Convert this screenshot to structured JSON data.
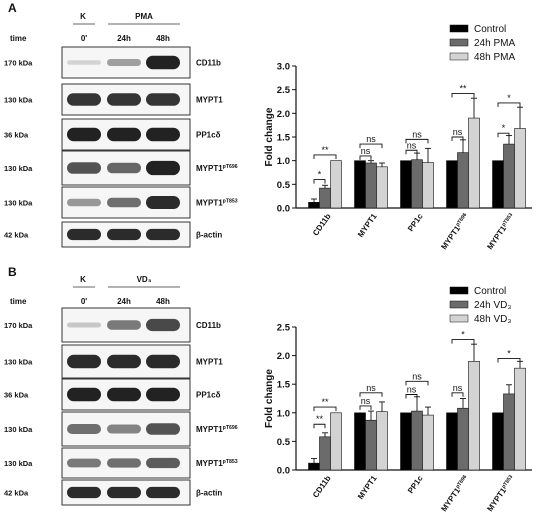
{
  "panels": [
    {
      "letter": "A",
      "group_labels": [
        "K",
        "PMA"
      ],
      "time_label": "time",
      "time_points": [
        "0'",
        "24h",
        "48h"
      ],
      "blots": [
        {
          "mw": "170 kDa",
          "protein": "CD11b",
          "sup": "",
          "bands": [
            0.04,
            0.3,
            0.95
          ]
        },
        {
          "mw": "130 kDa",
          "protein": "MYPT1",
          "sup": "",
          "bands": [
            0.85,
            0.85,
            0.85
          ]
        },
        {
          "mw": "36 kDa",
          "protein": "PP1cδ",
          "sup": "",
          "bands": [
            0.95,
            0.95,
            0.95
          ]
        },
        {
          "mw": "130 kDa",
          "protein": "MYPT1",
          "sup": "pT696",
          "bands": [
            0.7,
            0.6,
            0.95
          ]
        },
        {
          "mw": "130 kDa",
          "protein": "MYPT1",
          "sup": "pT853",
          "bands": [
            0.35,
            0.55,
            0.9
          ]
        },
        {
          "mw": "42 kDa",
          "protein": "β-actin",
          "sup": "",
          "bands": [
            0.9,
            0.9,
            0.9
          ]
        }
      ]
    },
    {
      "letter": "B",
      "group_labels": [
        "K",
        "VD₃"
      ],
      "time_label": "time",
      "time_points": [
        "0'",
        "24h",
        "48h"
      ],
      "blots": [
        {
          "mw": "170 kDa",
          "protein": "CD11b",
          "sup": "",
          "bands": [
            0.1,
            0.5,
            0.75
          ]
        },
        {
          "mw": "130 kDa",
          "protein": "MYPT1",
          "sup": "",
          "bands": [
            0.9,
            0.9,
            0.9
          ]
        },
        {
          "mw": "36 kDa",
          "protein": "PP1cδ",
          "sup": "",
          "bands": [
            0.95,
            0.95,
            0.95
          ]
        },
        {
          "mw": "130 kDa",
          "protein": "MYPT1",
          "sup": "pT696",
          "bands": [
            0.55,
            0.45,
            0.7
          ]
        },
        {
          "mw": "130 kDa",
          "protein": "MYPT1",
          "sup": "pT853",
          "bands": [
            0.5,
            0.55,
            0.65
          ]
        },
        {
          "mw": "42 kDa",
          "protein": "β-actin",
          "sup": "",
          "bands": [
            0.9,
            0.9,
            0.9
          ]
        }
      ]
    }
  ],
  "chart_data": [
    {
      "type": "bar",
      "ylabel": "Fold change",
      "ylim": [
        0,
        3.0
      ],
      "yticks": [
        "0.0",
        "0.5",
        "1.0",
        "1.5",
        "2.0",
        "2.5",
        "3.0"
      ],
      "categories": [
        {
          "label": "CD11b",
          "sup": ""
        },
        {
          "label": "MYPT1",
          "sup": ""
        },
        {
          "label": "PP1c",
          "sup": ""
        },
        {
          "label": "MYPT1",
          "sup": "pT696"
        },
        {
          "label": "MYPT1",
          "sup": "pT853"
        }
      ],
      "legend_position": "top-right",
      "series": [
        {
          "name": "Control",
          "color": "#000000",
          "values": [
            0.12,
            1.0,
            1.0,
            1.0,
            1.0
          ],
          "errors": [
            0.07,
            0.0,
            0.0,
            0.0,
            0.0
          ]
        },
        {
          "name": "24h PMA",
          "color": "#6b6b6b",
          "values": [
            0.42,
            0.95,
            1.02,
            1.17,
            1.35
          ],
          "errors": [
            0.06,
            0.05,
            0.14,
            0.27,
            0.18
          ]
        },
        {
          "name": "48h PMA",
          "color": "#d3d3d3",
          "values": [
            1.0,
            0.87,
            0.96,
            1.9,
            1.68
          ],
          "errors": [
            0.0,
            0.08,
            0.3,
            0.42,
            0.45
          ]
        }
      ],
      "significance": [
        {
          "cat": 0,
          "from": 0,
          "to": 1,
          "label": "*",
          "y": 0.6
        },
        {
          "cat": 0,
          "from": 0,
          "to": 2,
          "label": "**",
          "y": 1.12
        },
        {
          "cat": 1,
          "from": 0,
          "to": 1,
          "label": "ns",
          "y": 1.1
        },
        {
          "cat": 1,
          "from": 0,
          "to": 2,
          "label": "ns",
          "y": 1.35
        },
        {
          "cat": 2,
          "from": 0,
          "to": 1,
          "label": "ns",
          "y": 1.22
        },
        {
          "cat": 2,
          "from": 0,
          "to": 2,
          "label": "ns",
          "y": 1.45
        },
        {
          "cat": 3,
          "from": 0,
          "to": 1,
          "label": "ns",
          "y": 1.5
        },
        {
          "cat": 3,
          "from": 0,
          "to": 2,
          "label": "**",
          "y": 2.42
        },
        {
          "cat": 4,
          "from": 0,
          "to": 1,
          "label": "*",
          "y": 1.58
        },
        {
          "cat": 4,
          "from": 0,
          "to": 2,
          "label": "*",
          "y": 2.22
        }
      ]
    },
    {
      "type": "bar",
      "ylabel": "Fold change",
      "ylim": [
        0,
        2.5
      ],
      "yticks": [
        "0.0",
        "0.5",
        "1.0",
        "1.5",
        "2.0",
        "2.5"
      ],
      "categories": [
        {
          "label": "CD11b",
          "sup": ""
        },
        {
          "label": "MYPT1",
          "sup": ""
        },
        {
          "label": "PP1c",
          "sup": ""
        },
        {
          "label": "MYPT1",
          "sup": "pT696"
        },
        {
          "label": "MYPT1",
          "sup": "pT853"
        }
      ],
      "legend_position": "top-right",
      "series": [
        {
          "name": "Control",
          "color": "#000000",
          "values": [
            0.12,
            1.0,
            1.0,
            1.0,
            1.0
          ],
          "errors": [
            0.08,
            0.0,
            0.0,
            0.0,
            0.0
          ]
        },
        {
          "name": "24h VD₃",
          "color": "#6b6b6b",
          "values": [
            0.58,
            0.87,
            1.03,
            1.08,
            1.33
          ],
          "errors": [
            0.07,
            0.16,
            0.25,
            0.17,
            0.16
          ]
        },
        {
          "name": "48h VD₃",
          "color": "#d3d3d3",
          "values": [
            1.0,
            1.02,
            0.96,
            1.9,
            1.78
          ],
          "errors": [
            0.0,
            0.17,
            0.14,
            0.3,
            0.12
          ]
        }
      ],
      "significance": [
        {
          "cat": 0,
          "from": 0,
          "to": 1,
          "label": "**",
          "y": 0.8
        },
        {
          "cat": 0,
          "from": 0,
          "to": 2,
          "label": "**",
          "y": 1.1
        },
        {
          "cat": 1,
          "from": 0,
          "to": 1,
          "label": "ns",
          "y": 1.12
        },
        {
          "cat": 1,
          "from": 0,
          "to": 2,
          "label": "ns",
          "y": 1.35
        },
        {
          "cat": 2,
          "from": 0,
          "to": 1,
          "label": "ns",
          "y": 1.32
        },
        {
          "cat": 2,
          "from": 0,
          "to": 2,
          "label": "ns",
          "y": 1.55
        },
        {
          "cat": 3,
          "from": 0,
          "to": 1,
          "label": "ns",
          "y": 1.35
        },
        {
          "cat": 3,
          "from": 0,
          "to": 2,
          "label": "*",
          "y": 2.28
        },
        {
          "cat": 4,
          "from": 0,
          "to": 2,
          "label": "*",
          "y": 1.95
        }
      ]
    }
  ]
}
